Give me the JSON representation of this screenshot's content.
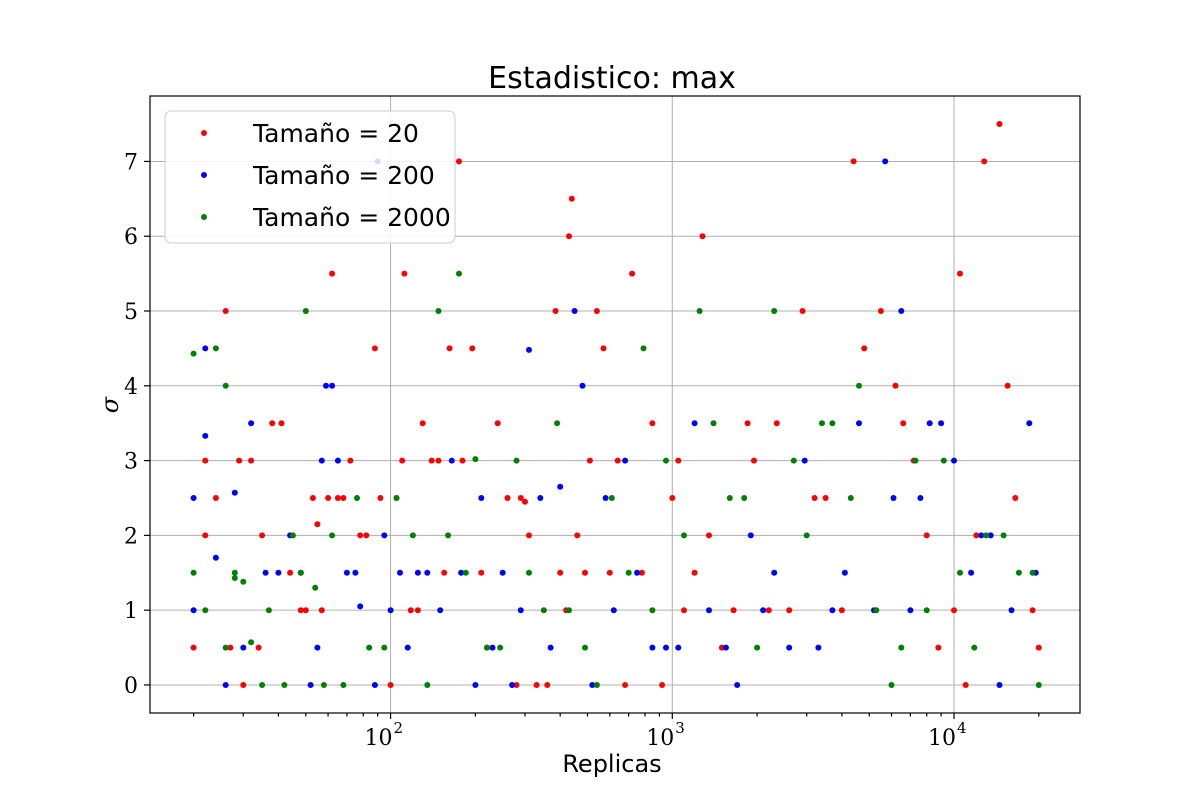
{
  "chart_data": {
    "type": "scatter",
    "title": "Estadistico: max",
    "xlabel": "Replicas",
    "ylabel": "σ",
    "xscale": "log",
    "xlim": [
      14,
      28000
    ],
    "ylim": [
      -0.375,
      7.875
    ],
    "grid": true,
    "legend_position": "top-left",
    "x_ticks": [
      {
        "base": "10",
        "exp": "2",
        "value": 100
      },
      {
        "base": "10",
        "exp": "3",
        "value": 1000
      },
      {
        "base": "10",
        "exp": "4",
        "value": 10000
      }
    ],
    "y_ticks": [
      {
        "label": "0",
        "value": 0
      },
      {
        "label": "1",
        "value": 1
      },
      {
        "label": "2",
        "value": 2
      },
      {
        "label": "3",
        "value": 3
      },
      {
        "label": "4",
        "value": 4
      },
      {
        "label": "5",
        "value": 5
      },
      {
        "label": "6",
        "value": 6
      },
      {
        "label": "7",
        "value": 7
      }
    ],
    "series": [
      {
        "name": "Tamaño = 20",
        "color": "#ff0000",
        "points": [
          [
            20,
            0.5
          ],
          [
            22,
            2
          ],
          [
            22,
            3
          ],
          [
            24,
            2.5
          ],
          [
            26,
            5
          ],
          [
            27,
            0.5
          ],
          [
            29,
            3
          ],
          [
            30,
            0
          ],
          [
            32,
            3
          ],
          [
            34,
            0.5
          ],
          [
            35,
            2
          ],
          [
            38,
            3.5
          ],
          [
            41,
            3.5
          ],
          [
            44,
            1.5
          ],
          [
            48,
            1
          ],
          [
            50,
            1
          ],
          [
            53,
            2.5
          ],
          [
            55,
            2.15
          ],
          [
            57,
            1
          ],
          [
            60,
            2.5
          ],
          [
            62,
            5.5
          ],
          [
            65,
            2.5
          ],
          [
            68,
            2.5
          ],
          [
            72,
            3
          ],
          [
            78,
            2
          ],
          [
            82,
            2
          ],
          [
            88,
            4.5
          ],
          [
            92,
            2.5
          ],
          [
            100,
            0
          ],
          [
            105,
            2.5
          ],
          [
            110,
            3
          ],
          [
            112,
            5.5
          ],
          [
            118,
            1
          ],
          [
            125,
            1
          ],
          [
            130,
            3.5
          ],
          [
            140,
            3
          ],
          [
            148,
            3
          ],
          [
            155,
            1.5
          ],
          [
            162,
            4.5
          ],
          [
            175,
            7
          ],
          [
            180,
            3
          ],
          [
            195,
            4.5
          ],
          [
            210,
            1.5
          ],
          [
            220,
            0.5
          ],
          [
            240,
            3.5
          ],
          [
            260,
            2.5
          ],
          [
            280,
            0
          ],
          [
            290,
            2.5
          ],
          [
            300,
            2.45
          ],
          [
            310,
            2
          ],
          [
            330,
            0
          ],
          [
            360,
            0
          ],
          [
            385,
            5
          ],
          [
            400,
            1.5
          ],
          [
            420,
            1
          ],
          [
            430,
            6
          ],
          [
            440,
            6.5
          ],
          [
            460,
            2
          ],
          [
            490,
            1.5
          ],
          [
            510,
            3
          ],
          [
            540,
            5
          ],
          [
            570,
            4.5
          ],
          [
            600,
            1.5
          ],
          [
            640,
            3
          ],
          [
            680,
            0
          ],
          [
            720,
            5.5
          ],
          [
            780,
            1.5
          ],
          [
            850,
            3.5
          ],
          [
            920,
            0
          ],
          [
            1000,
            2.5
          ],
          [
            1050,
            3
          ],
          [
            1100,
            1
          ],
          [
            1200,
            1.5
          ],
          [
            1280,
            6
          ],
          [
            1350,
            2
          ],
          [
            1500,
            0.5
          ],
          [
            1650,
            1
          ],
          [
            1850,
            3.5
          ],
          [
            1950,
            3
          ],
          [
            2200,
            1
          ],
          [
            2350,
            3.5
          ],
          [
            2600,
            1
          ],
          [
            2900,
            5
          ],
          [
            3200,
            2.5
          ],
          [
            3500,
            2.5
          ],
          [
            4000,
            1
          ],
          [
            4400,
            7
          ],
          [
            4800,
            4.5
          ],
          [
            5500,
            5
          ],
          [
            6200,
            4
          ],
          [
            6600,
            3.5
          ],
          [
            7200,
            3
          ],
          [
            8000,
            2
          ],
          [
            8800,
            0.5
          ],
          [
            10000,
            1
          ],
          [
            10500,
            5.5
          ],
          [
            11000,
            0
          ],
          [
            12000,
            2
          ],
          [
            12800,
            7
          ],
          [
            14500,
            7.5
          ],
          [
            15500,
            4
          ],
          [
            16500,
            2.5
          ],
          [
            19000,
            1
          ],
          [
            20000,
            0.5
          ]
        ]
      },
      {
        "name": "Tamaño = 200",
        "color": "#0000ff",
        "points": [
          [
            20,
            2.5
          ],
          [
            20,
            1
          ],
          [
            22,
            4.5
          ],
          [
            22,
            3.33
          ],
          [
            24,
            1.7
          ],
          [
            26,
            0
          ],
          [
            28,
            2.57
          ],
          [
            30,
            0.5
          ],
          [
            32,
            3.5
          ],
          [
            36,
            1.5
          ],
          [
            40,
            1.5
          ],
          [
            44,
            2
          ],
          [
            48,
            1.5
          ],
          [
            52,
            0
          ],
          [
            55,
            0.5
          ],
          [
            57,
            3
          ],
          [
            59,
            4
          ],
          [
            62,
            4
          ],
          [
            65,
            3
          ],
          [
            70,
            1.5
          ],
          [
            75,
            1.5
          ],
          [
            78,
            1.05
          ],
          [
            88,
            0
          ],
          [
            90,
            7
          ],
          [
            95,
            2
          ],
          [
            100,
            1
          ],
          [
            108,
            1.5
          ],
          [
            115,
            0.5
          ],
          [
            125,
            1.5
          ],
          [
            135,
            1.5
          ],
          [
            150,
            1
          ],
          [
            165,
            3
          ],
          [
            178,
            1.5
          ],
          [
            200,
            0
          ],
          [
            210,
            2.5
          ],
          [
            230,
            0.5
          ],
          [
            250,
            1.5
          ],
          [
            270,
            0
          ],
          [
            290,
            1
          ],
          [
            310,
            4.48
          ],
          [
            340,
            2.5
          ],
          [
            370,
            0.5
          ],
          [
            400,
            2.65
          ],
          [
            450,
            5
          ],
          [
            480,
            4
          ],
          [
            520,
            0
          ],
          [
            580,
            2.5
          ],
          [
            620,
            1
          ],
          [
            680,
            3
          ],
          [
            750,
            1.5
          ],
          [
            850,
            0.5
          ],
          [
            950,
            0.5
          ],
          [
            1050,
            0.5
          ],
          [
            1200,
            3.5
          ],
          [
            1350,
            1
          ],
          [
            1550,
            0.5
          ],
          [
            1700,
            0
          ],
          [
            1900,
            2
          ],
          [
            2100,
            1
          ],
          [
            2300,
            1.5
          ],
          [
            2600,
            0.5
          ],
          [
            2950,
            3
          ],
          [
            3300,
            0.5
          ],
          [
            3700,
            1
          ],
          [
            4100,
            1.5
          ],
          [
            4600,
            3.5
          ],
          [
            5200,
            1
          ],
          [
            5700,
            7
          ],
          [
            6100,
            2.5
          ],
          [
            6500,
            5
          ],
          [
            7000,
            1
          ],
          [
            7600,
            2.5
          ],
          [
            8200,
            3.5
          ],
          [
            9000,
            3.5
          ],
          [
            10000,
            3
          ],
          [
            11500,
            1.5
          ],
          [
            12500,
            2
          ],
          [
            13500,
            2
          ],
          [
            14500,
            0
          ],
          [
            16000,
            1
          ],
          [
            18500,
            3.5
          ],
          [
            19500,
            1.5
          ]
        ]
      },
      {
        "name": "Tamaño = 2000",
        "color": "#008000",
        "points": [
          [
            20,
            4.43
          ],
          [
            20,
            1.5
          ],
          [
            22,
            1
          ],
          [
            24,
            4.5
          ],
          [
            26,
            4
          ],
          [
            26,
            0.5
          ],
          [
            28,
            1.5
          ],
          [
            28,
            1.43
          ],
          [
            30,
            1.38
          ],
          [
            32,
            0.57
          ],
          [
            35,
            0
          ],
          [
            37,
            1
          ],
          [
            42,
            0
          ],
          [
            45,
            2
          ],
          [
            48,
            1.5
          ],
          [
            50,
            5
          ],
          [
            54,
            1.3
          ],
          [
            58,
            0
          ],
          [
            62,
            2
          ],
          [
            68,
            0
          ],
          [
            76,
            2.5
          ],
          [
            84,
            0.5
          ],
          [
            95,
            0.5
          ],
          [
            105,
            2.5
          ],
          [
            120,
            2
          ],
          [
            135,
            0
          ],
          [
            148,
            5
          ],
          [
            160,
            2
          ],
          [
            175,
            5.5
          ],
          [
            185,
            1.5
          ],
          [
            200,
            3.02
          ],
          [
            220,
            0.5
          ],
          [
            245,
            0.5
          ],
          [
            280,
            3
          ],
          [
            310,
            1.5
          ],
          [
            350,
            1
          ],
          [
            390,
            3.5
          ],
          [
            430,
            1
          ],
          [
            490,
            0.5
          ],
          [
            540,
            0
          ],
          [
            610,
            2.5
          ],
          [
            700,
            1.5
          ],
          [
            790,
            4.5
          ],
          [
            850,
            1
          ],
          [
            950,
            3
          ],
          [
            1100,
            2
          ],
          [
            1250,
            5
          ],
          [
            1400,
            3.5
          ],
          [
            1600,
            2.5
          ],
          [
            1800,
            2.5
          ],
          [
            2000,
            0.5
          ],
          [
            2300,
            5
          ],
          [
            2700,
            3
          ],
          [
            3000,
            2
          ],
          [
            3400,
            3.5
          ],
          [
            3700,
            3.5
          ],
          [
            4300,
            2.5
          ],
          [
            4600,
            4
          ],
          [
            5300,
            1
          ],
          [
            6000,
            0
          ],
          [
            6500,
            0.5
          ],
          [
            7300,
            3
          ],
          [
            8000,
            1
          ],
          [
            9200,
            3
          ],
          [
            10500,
            1.5
          ],
          [
            11800,
            0.5
          ],
          [
            13000,
            2
          ],
          [
            15000,
            2
          ],
          [
            17000,
            1.5
          ],
          [
            19000,
            1.5
          ],
          [
            20000,
            0
          ]
        ]
      }
    ]
  }
}
